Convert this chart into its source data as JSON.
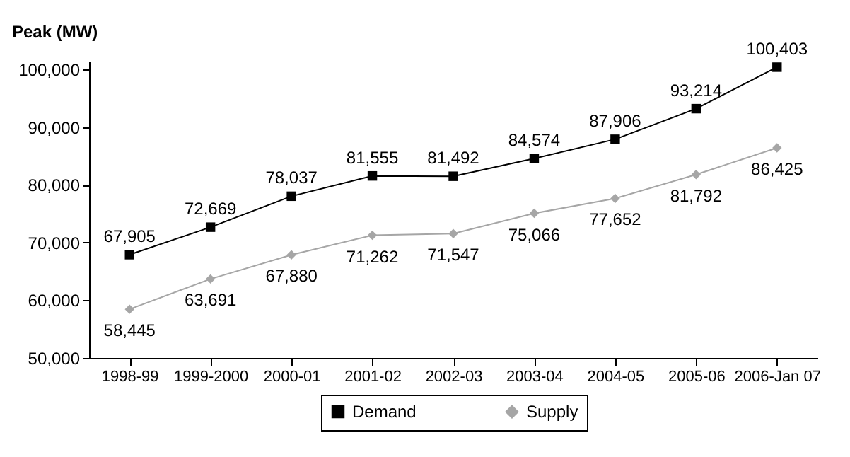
{
  "chart_data": {
    "type": "line",
    "ylabel": "Peak (MW)",
    "categories": [
      "1998-99",
      "1999-2000",
      "2000-01",
      "2001-02",
      "2002-03",
      "2003-04",
      "2004-05",
      "2005-06",
      "2006-Jan 07"
    ],
    "series": [
      {
        "name": "Demand",
        "color": "#000000",
        "marker": "square",
        "values": [
          67905,
          72669,
          78037,
          81555,
          81492,
          84574,
          87906,
          93214,
          100403
        ],
        "value_labels": [
          "67,905",
          "72,669",
          "78,037",
          "81,555",
          "81,492",
          "84,574",
          "87,906",
          "93,214",
          "100,403"
        ]
      },
      {
        "name": "Supply",
        "color": "#a6a6a6",
        "marker": "diamond",
        "values": [
          58445,
          63691,
          67880,
          71262,
          71547,
          75066,
          77652,
          81792,
          86425
        ],
        "value_labels": [
          "58,445",
          "63,691",
          "67,880",
          "71,262",
          "71,547",
          "75,066",
          "77,652",
          "81,792",
          "86,425"
        ]
      }
    ],
    "ylim": [
      50000,
      101500
    ],
    "yticks": [
      {
        "value": 50000,
        "label": "50,000"
      },
      {
        "value": 60000,
        "label": "60,000"
      },
      {
        "value": 70000,
        "label": "70,000"
      },
      {
        "value": 80000,
        "label": "80,000"
      },
      {
        "value": 90000,
        "label": "90,000"
      },
      {
        "value": 100000,
        "label": "100,000"
      }
    ],
    "legend": "bottom",
    "grid": false
  }
}
